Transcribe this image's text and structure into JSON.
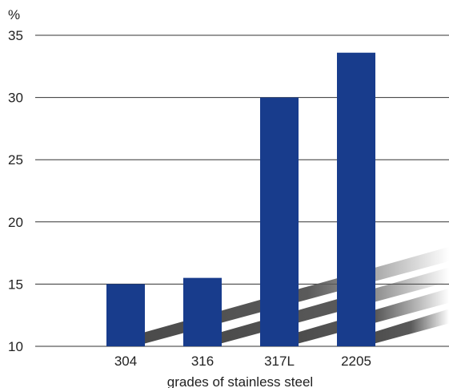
{
  "chart_data": {
    "type": "bar",
    "title": "",
    "ylabel": "%",
    "xlabel": "grades of stainless steel",
    "categories": [
      "304",
      "316",
      "317L",
      "2205"
    ],
    "values": [
      15,
      15.5,
      30,
      33.6
    ],
    "ylim": [
      10,
      35
    ],
    "yticks": [
      10,
      15,
      20,
      25,
      30,
      35
    ],
    "grid": true,
    "legend": "none",
    "bar_color": "#183c8c",
    "stripe_color": "#555555"
  }
}
